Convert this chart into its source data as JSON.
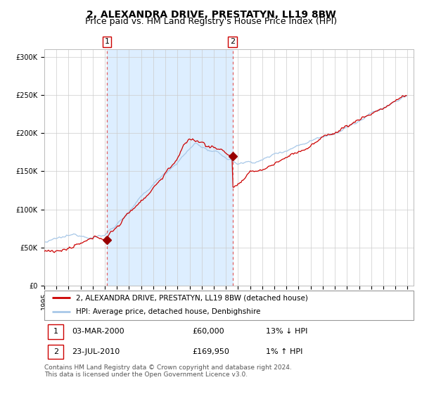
{
  "title": "2, ALEXANDRA DRIVE, PRESTATYN, LL19 8BW",
  "subtitle": "Price paid vs. HM Land Registry's House Price Index (HPI)",
  "y_ticks": [
    0,
    50000,
    100000,
    150000,
    200000,
    250000,
    300000
  ],
  "y_tick_labels": [
    "£0",
    "£50K",
    "£100K",
    "£150K",
    "£200K",
    "£250K",
    "£300K"
  ],
  "hpi_color": "#a8c8e8",
  "price_color": "#cc0000",
  "bg_shaded_color": "#ddeeff",
  "marker_color": "#990000",
  "dashed_color": "#e06060",
  "purchase1_year": 2000.17,
  "purchase1_price": 60000,
  "purchase2_year": 2010.55,
  "purchase2_price": 169950,
  "legend_line1": "2, ALEXANDRA DRIVE, PRESTATYN, LL19 8BW (detached house)",
  "legend_line2": "HPI: Average price, detached house, Denbighshire",
  "table_row1_num": "1",
  "table_row1_date": "03-MAR-2000",
  "table_row1_price": "£60,000",
  "table_row1_hpi": "13% ↓ HPI",
  "table_row2_num": "2",
  "table_row2_date": "23-JUL-2010",
  "table_row2_price": "£169,950",
  "table_row2_hpi": "1% ↑ HPI",
  "footnote1": "Contains HM Land Registry data © Crown copyright and database right 2024.",
  "footnote2": "This data is licensed under the Open Government Licence v3.0.",
  "title_fontsize": 10,
  "subtitle_fontsize": 9,
  "tick_fontsize": 7,
  "legend_fontsize": 7.5,
  "table_fontsize": 8,
  "footnote_fontsize": 6.5
}
